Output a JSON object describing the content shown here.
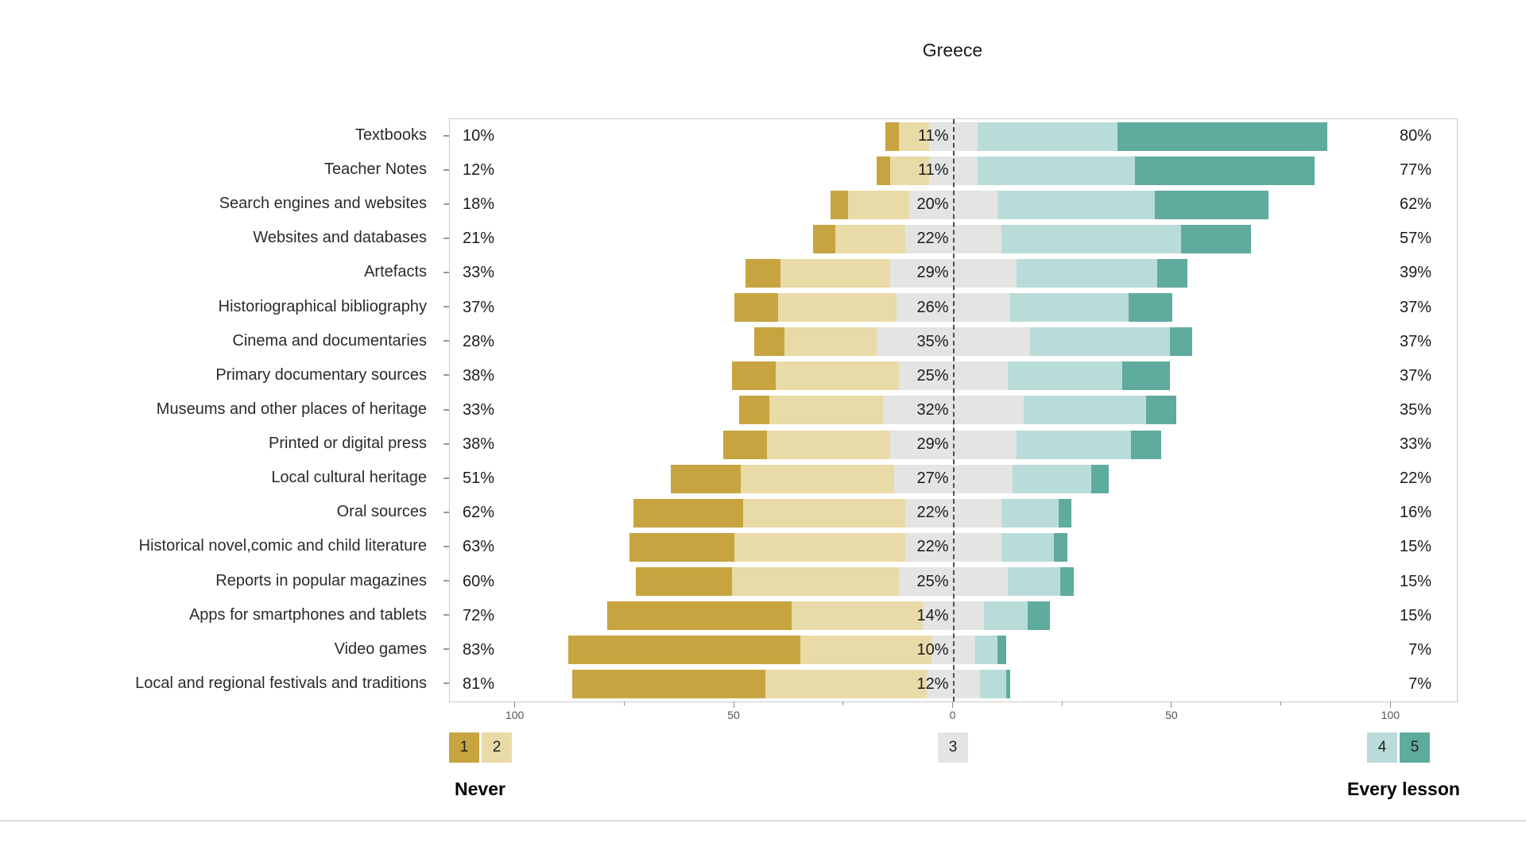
{
  "title": "Greece",
  "legend": {
    "items": [
      {
        "label": "1",
        "color": "#c7a440"
      },
      {
        "label": "2",
        "color": "#e9dba8"
      },
      {
        "label": "3",
        "color": "#e4e4e3"
      },
      {
        "label": "4",
        "color": "#b9dcd8"
      },
      {
        "label": "5",
        "color": "#5fab9e"
      }
    ],
    "left_caption": "Never",
    "right_caption": "Every lesson"
  },
  "chart_data": {
    "type": "diverging-stacked-bar",
    "title": "Greece",
    "axis_range": [
      -115,
      115
    ],
    "axis_ticks": [
      {
        "value": -100,
        "label": "100"
      },
      {
        "value": -75,
        "label": ""
      },
      {
        "value": -50,
        "label": "50"
      },
      {
        "value": -25,
        "label": ""
      },
      {
        "value": 0,
        "label": "0"
      },
      {
        "value": 25,
        "label": ""
      },
      {
        "value": 50,
        "label": "50"
      },
      {
        "value": 75,
        "label": ""
      },
      {
        "value": 100,
        "label": "100"
      }
    ],
    "scale": {
      "1": "Never",
      "5": "Every lesson",
      "neutral": "3"
    },
    "rows": [
      {
        "label": "Textbooks",
        "never_pct": "10%",
        "mid_pct": "11%",
        "every_pct": "80%",
        "segments": {
          "1": 3,
          "2": 7,
          "3": 11,
          "4": 32,
          "5": 48
        }
      },
      {
        "label": "Teacher Notes",
        "never_pct": "12%",
        "mid_pct": "11%",
        "every_pct": "77%",
        "segments": {
          "1": 3,
          "2": 9,
          "3": 11,
          "4": 36,
          "5": 41
        }
      },
      {
        "label": "Search engines and websites",
        "never_pct": "18%",
        "mid_pct": "20%",
        "every_pct": "62%",
        "segments": {
          "1": 4,
          "2": 14,
          "3": 20,
          "4": 36,
          "5": 26
        }
      },
      {
        "label": "Websites and databases",
        "never_pct": "21%",
        "mid_pct": "22%",
        "every_pct": "57%",
        "segments": {
          "1": 5,
          "2": 16,
          "3": 22,
          "4": 41,
          "5": 16
        }
      },
      {
        "label": "Artefacts",
        "never_pct": "33%",
        "mid_pct": "29%",
        "every_pct": "39%",
        "segments": {
          "1": 8,
          "2": 25,
          "3": 29,
          "4": 32,
          "5": 7
        }
      },
      {
        "label": "Historiographical bibliography",
        "never_pct": "37%",
        "mid_pct": "26%",
        "every_pct": "37%",
        "segments": {
          "1": 10,
          "2": 27,
          "3": 26,
          "4": 27,
          "5": 10
        }
      },
      {
        "label": "Cinema and documentaries",
        "never_pct": "28%",
        "mid_pct": "35%",
        "every_pct": "37%",
        "segments": {
          "1": 7,
          "2": 21,
          "3": 35,
          "4": 32,
          "5": 5
        }
      },
      {
        "label": "Primary documentary sources",
        "never_pct": "38%",
        "mid_pct": "25%",
        "every_pct": "37%",
        "segments": {
          "1": 10,
          "2": 28,
          "3": 25,
          "4": 26,
          "5": 11
        }
      },
      {
        "label": "Museums and other places of heritage",
        "never_pct": "33%",
        "mid_pct": "32%",
        "every_pct": "35%",
        "segments": {
          "1": 7,
          "2": 26,
          "3": 32,
          "4": 28,
          "5": 7
        }
      },
      {
        "label": "Printed or digital press",
        "never_pct": "38%",
        "mid_pct": "29%",
        "every_pct": "33%",
        "segments": {
          "1": 10,
          "2": 28,
          "3": 29,
          "4": 26,
          "5": 7
        }
      },
      {
        "label": "Local cultural heritage",
        "never_pct": "51%",
        "mid_pct": "27%",
        "every_pct": "22%",
        "segments": {
          "1": 16,
          "2": 35,
          "3": 27,
          "4": 18,
          "5": 4
        }
      },
      {
        "label": "Oral sources",
        "never_pct": "62%",
        "mid_pct": "22%",
        "every_pct": "16%",
        "segments": {
          "1": 25,
          "2": 37,
          "3": 22,
          "4": 13,
          "5": 3
        }
      },
      {
        "label": "Historical novel,comic and child literature",
        "never_pct": "63%",
        "mid_pct": "22%",
        "every_pct": "15%",
        "segments": {
          "1": 24,
          "2": 39,
          "3": 22,
          "4": 12,
          "5": 3
        }
      },
      {
        "label": "Reports in popular magazines",
        "never_pct": "60%",
        "mid_pct": "25%",
        "every_pct": "15%",
        "segments": {
          "1": 22,
          "2": 38,
          "3": 25,
          "4": 12,
          "5": 3
        }
      },
      {
        "label": "Apps for smartphones and tablets",
        "never_pct": "72%",
        "mid_pct": "14%",
        "every_pct": "15%",
        "segments": {
          "1": 42,
          "2": 30,
          "3": 14,
          "4": 10,
          "5": 5
        }
      },
      {
        "label": "Video games",
        "never_pct": "83%",
        "mid_pct": "10%",
        "every_pct": "7%",
        "segments": {
          "1": 53,
          "2": 30,
          "3": 10,
          "4": 5,
          "5": 2
        }
      },
      {
        "label": "Local and regional festivals and traditions",
        "never_pct": "81%",
        "mid_pct": "12%",
        "every_pct": "7%",
        "segments": {
          "1": 44,
          "2": 37,
          "3": 12,
          "4": 6,
          "5": 1
        }
      }
    ]
  }
}
